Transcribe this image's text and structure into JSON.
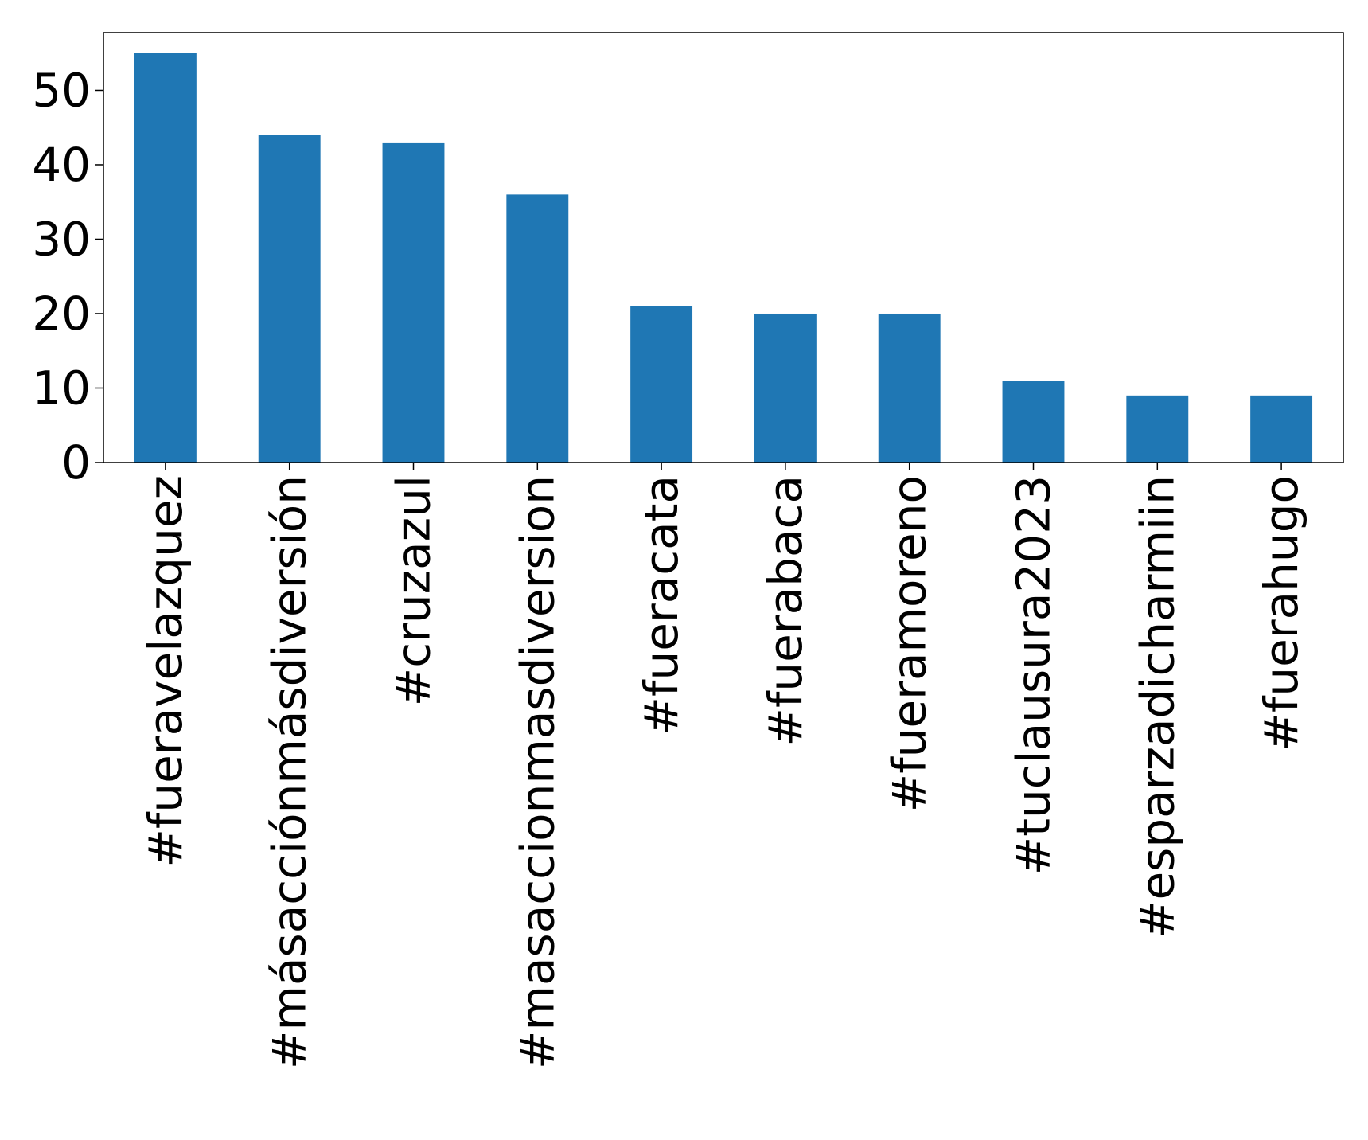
{
  "chart_data": {
    "type": "bar",
    "categories": [
      "#fueravelazquez",
      "#másacciónmásdiversión",
      "#cruzazul",
      "#masaccionmasdiversion",
      "#fueracata",
      "#fuerabaca",
      "#fueramoreno",
      "#tuclausura2023",
      "#esparzadicharmiin",
      "#fuerahugo"
    ],
    "values": [
      55,
      44,
      43,
      36,
      21,
      20,
      20,
      11,
      9,
      9
    ],
    "title": "",
    "xlabel": "",
    "ylabel": "",
    "ylim": [
      0,
      57.75
    ],
    "yticks": [
      0,
      10,
      20,
      30,
      40,
      50
    ],
    "ytick_labels": [
      "0",
      "10",
      "20",
      "30",
      "40",
      "50"
    ],
    "grid": false,
    "bar_color": "#1f77b4"
  }
}
